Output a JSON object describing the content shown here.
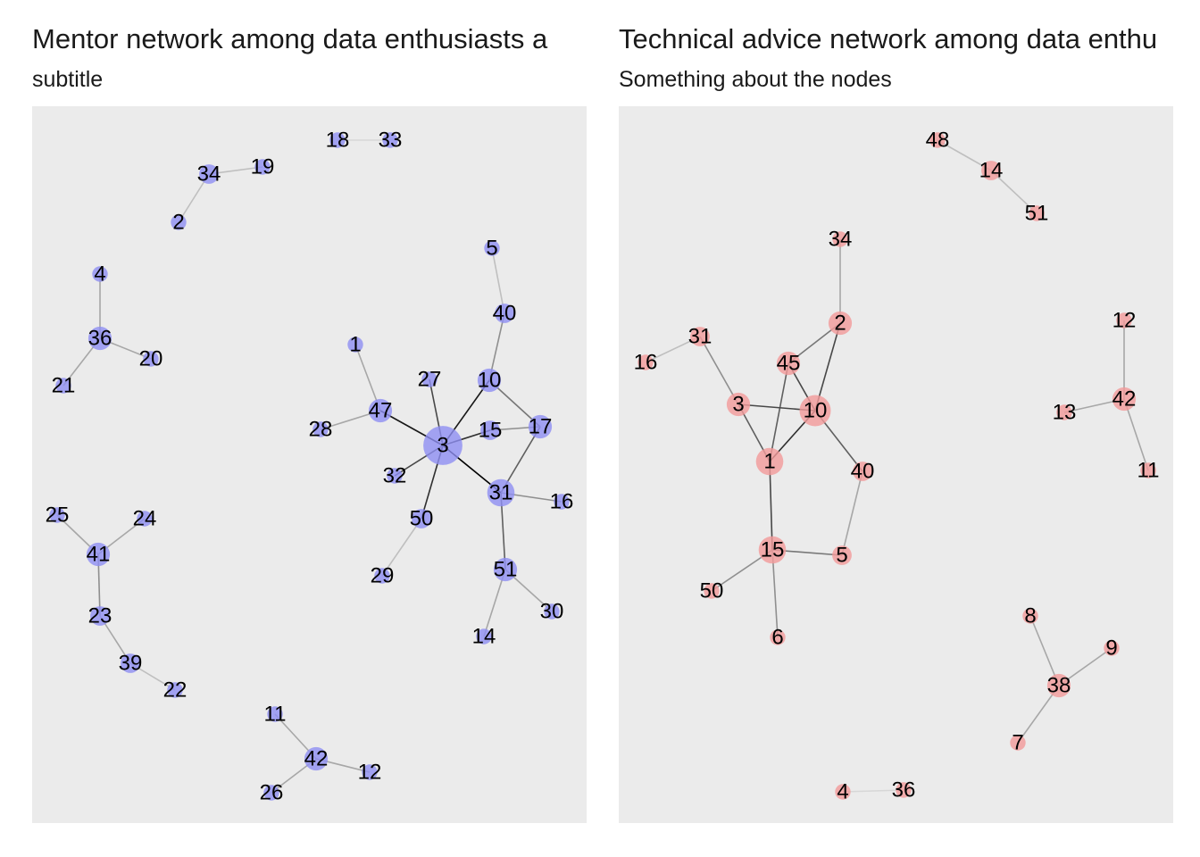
{
  "panels": [
    {
      "title": "Mentor network among data enthusiasts a",
      "subtitle": "subtitle",
      "node_color": "#8f8ff2",
      "nodes": [
        {
          "id": "18"
        },
        {
          "id": "33"
        },
        {
          "id": "34"
        },
        {
          "id": "19"
        },
        {
          "id": "2"
        },
        {
          "id": "5"
        },
        {
          "id": "4"
        },
        {
          "id": "40"
        },
        {
          "id": "36"
        },
        {
          "id": "20"
        },
        {
          "id": "1"
        },
        {
          "id": "21"
        },
        {
          "id": "27"
        },
        {
          "id": "10"
        },
        {
          "id": "47"
        },
        {
          "id": "28"
        },
        {
          "id": "15"
        },
        {
          "id": "17"
        },
        {
          "id": "3"
        },
        {
          "id": "32"
        },
        {
          "id": "31"
        },
        {
          "id": "16"
        },
        {
          "id": "25"
        },
        {
          "id": "24"
        },
        {
          "id": "50"
        },
        {
          "id": "41"
        },
        {
          "id": "51"
        },
        {
          "id": "29"
        },
        {
          "id": "30"
        },
        {
          "id": "23"
        },
        {
          "id": "14"
        },
        {
          "id": "39"
        },
        {
          "id": "22"
        },
        {
          "id": "11"
        },
        {
          "id": "42"
        },
        {
          "id": "12"
        },
        {
          "id": "26"
        }
      ],
      "edges": [
        {
          "source": "18",
          "target": "33"
        },
        {
          "source": "34",
          "target": "19"
        },
        {
          "source": "34",
          "target": "2"
        },
        {
          "source": "4",
          "target": "36"
        },
        {
          "source": "36",
          "target": "20"
        },
        {
          "source": "36",
          "target": "21"
        },
        {
          "source": "5",
          "target": "40"
        },
        {
          "source": "40",
          "target": "10"
        },
        {
          "source": "10",
          "target": "3"
        },
        {
          "source": "10",
          "target": "17"
        },
        {
          "source": "17",
          "target": "31"
        },
        {
          "source": "15",
          "target": "17"
        },
        {
          "source": "3",
          "target": "15"
        },
        {
          "source": "27",
          "target": "3"
        },
        {
          "source": "47",
          "target": "3"
        },
        {
          "source": "1",
          "target": "47"
        },
        {
          "source": "47",
          "target": "28"
        },
        {
          "source": "3",
          "target": "32"
        },
        {
          "source": "3",
          "target": "31"
        },
        {
          "source": "3",
          "target": "50"
        },
        {
          "source": "50",
          "target": "29"
        },
        {
          "source": "31",
          "target": "16"
        },
        {
          "source": "31",
          "target": "51"
        },
        {
          "source": "51",
          "target": "30"
        },
        {
          "source": "51",
          "target": "14"
        },
        {
          "source": "25",
          "target": "41"
        },
        {
          "source": "24",
          "target": "41"
        },
        {
          "source": "41",
          "target": "23"
        },
        {
          "source": "23",
          "target": "39"
        },
        {
          "source": "39",
          "target": "22"
        },
        {
          "source": "11",
          "target": "42"
        },
        {
          "source": "42",
          "target": "12"
        },
        {
          "source": "42",
          "target": "26"
        }
      ]
    },
    {
      "title": "Technical advice network among data enthu",
      "subtitle": "Something about the nodes",
      "node_color": "#f29a9a",
      "nodes": [
        {
          "id": "48"
        },
        {
          "id": "14"
        },
        {
          "id": "51"
        },
        {
          "id": "34"
        },
        {
          "id": "2"
        },
        {
          "id": "12"
        },
        {
          "id": "31"
        },
        {
          "id": "45"
        },
        {
          "id": "16"
        },
        {
          "id": "42"
        },
        {
          "id": "3"
        },
        {
          "id": "10"
        },
        {
          "id": "13"
        },
        {
          "id": "1"
        },
        {
          "id": "40"
        },
        {
          "id": "11"
        },
        {
          "id": "15"
        },
        {
          "id": "5"
        },
        {
          "id": "50"
        },
        {
          "id": "8"
        },
        {
          "id": "6"
        },
        {
          "id": "9"
        },
        {
          "id": "38"
        },
        {
          "id": "7"
        },
        {
          "id": "4"
        },
        {
          "id": "36"
        }
      ],
      "edges": [
        {
          "source": "48",
          "target": "14"
        },
        {
          "source": "14",
          "target": "51"
        },
        {
          "source": "34",
          "target": "2"
        },
        {
          "source": "2",
          "target": "45"
        },
        {
          "source": "2",
          "target": "10"
        },
        {
          "source": "45",
          "target": "10"
        },
        {
          "source": "45",
          "target": "1"
        },
        {
          "source": "16",
          "target": "31"
        },
        {
          "source": "31",
          "target": "3"
        },
        {
          "source": "3",
          "target": "10"
        },
        {
          "source": "3",
          "target": "1"
        },
        {
          "source": "10",
          "target": "1"
        },
        {
          "source": "10",
          "target": "40"
        },
        {
          "source": "40",
          "target": "5"
        },
        {
          "source": "1",
          "target": "15"
        },
        {
          "source": "15",
          "target": "5"
        },
        {
          "source": "15",
          "target": "50"
        },
        {
          "source": "15",
          "target": "6"
        },
        {
          "source": "12",
          "target": "42"
        },
        {
          "source": "13",
          "target": "42"
        },
        {
          "source": "42",
          "target": "11"
        },
        {
          "source": "8",
          "target": "38"
        },
        {
          "source": "9",
          "target": "38"
        },
        {
          "source": "38",
          "target": "7"
        },
        {
          "source": "4",
          "target": "36"
        }
      ]
    }
  ]
}
